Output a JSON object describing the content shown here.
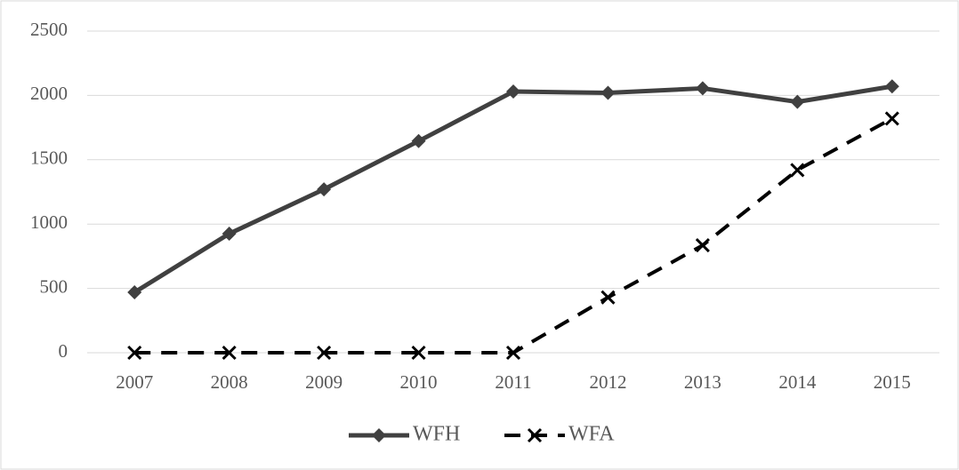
{
  "chart_data": {
    "type": "line",
    "categories": [
      "2007",
      "2008",
      "2009",
      "2010",
      "2011",
      "2012",
      "2013",
      "2014",
      "2015"
    ],
    "series": [
      {
        "name": "WFH",
        "color": "#404040",
        "values": [
          470,
          925,
          1270,
          1645,
          2030,
          2020,
          2055,
          1950,
          2070
        ]
      },
      {
        "name": "WFA",
        "color": "#000000",
        "values": [
          0,
          0,
          0,
          0,
          0,
          430,
          835,
          1420,
          1820
        ]
      }
    ],
    "ylim": [
      0,
      2500
    ],
    "yticks": [
      0,
      500,
      1000,
      1500,
      2000,
      2500
    ],
    "grid": true,
    "legend": "bottom"
  }
}
